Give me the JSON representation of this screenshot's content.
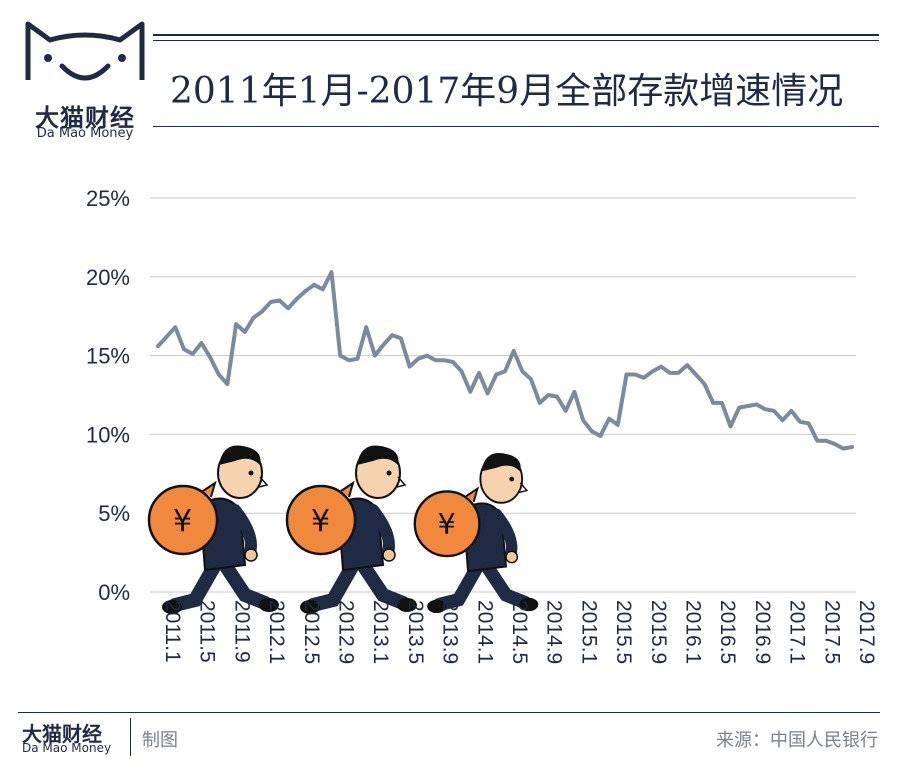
{
  "logo": {
    "cn": "大猫财经",
    "en": "Da Mao Money"
  },
  "title": "2011年1月-2017年9月全部存款增速情况",
  "footer": {
    "brand_cn": "大猫财经",
    "brand_en": "Da Mao Money",
    "made": "制图",
    "source": "来源：中国人民银行"
  },
  "colors": {
    "line": "#7b8a9e",
    "navy": "#1f2a44",
    "bag": "#f0883e",
    "grid": "#c9c9c9"
  },
  "chart_data": {
    "type": "line",
    "title": "2011年1月-2017年9月全部存款增速情况",
    "xlabel": "",
    "ylabel": "",
    "ylim": [
      0,
      25
    ],
    "y_ticks": [
      "0%",
      "5%",
      "10%",
      "15%",
      "20%",
      "25%"
    ],
    "x_tick_labels": [
      "2011.1",
      "2011.5",
      "2011.9",
      "2012.1",
      "2012.5",
      "2012.9",
      "2013.1",
      "2013.5",
      "2013.9",
      "2014.1",
      "2014.5",
      "2014.9",
      "2015.1",
      "2015.5",
      "2015.9",
      "2016.1",
      "2016.5",
      "2016.9",
      "2017.1",
      "2017.5",
      "2017.9"
    ],
    "grid": true,
    "legend": "none",
    "series": [
      {
        "start": "2011.1",
        "frequency": "monthly",
        "values": [
          15.6,
          16.2,
          16.8,
          15.4,
          15.1,
          15.8,
          14.9,
          13.8,
          13.2,
          17.0,
          16.5,
          17.4,
          17.8,
          18.4,
          18.5,
          18.0,
          18.6,
          19.1,
          19.5,
          19.2,
          20.3,
          15.0,
          14.7,
          14.8,
          16.8,
          15.0,
          15.7,
          16.3,
          16.1,
          14.3,
          14.8,
          15.0,
          14.7,
          14.7,
          14.6,
          14.0,
          12.7,
          13.9,
          12.6,
          13.8,
          14.0,
          15.3,
          14.0,
          13.5,
          12.0,
          12.5,
          12.4,
          11.5,
          12.7,
          10.9,
          10.2,
          9.9,
          11.0,
          10.6,
          13.8,
          13.8,
          13.6,
          14.0,
          14.3,
          13.9,
          13.9,
          14.4,
          13.8,
          13.2,
          12.0,
          12.0,
          10.5,
          11.7,
          11.8,
          11.9,
          11.6,
          11.5,
          10.9,
          11.5,
          10.8,
          10.7,
          9.6,
          9.6,
          9.4,
          9.1,
          9.2
        ]
      }
    ]
  }
}
